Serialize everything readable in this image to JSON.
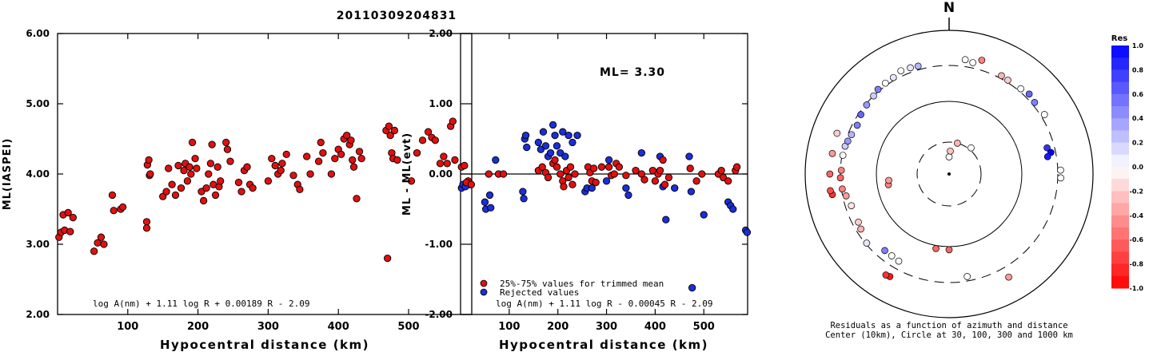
{
  "title": "20110309204831",
  "colors": {
    "trimmed": "#e01010",
    "rejected": "#1a2fd8"
  },
  "panel1": {
    "ylabel": "ML(IASPEI)",
    "xlabel": "Hypocentral distance (km)",
    "xlim": [
      0,
      590
    ],
    "ylim": [
      2.0,
      6.0
    ],
    "xticks": [
      "100",
      "200",
      "300",
      "400",
      "500"
    ],
    "yticks": [
      "2.00",
      "3.00",
      "4.00",
      "5.00",
      "6.00"
    ],
    "formula": "log A(nm) + 1.11 log R + 0.00189 R - 2.09"
  },
  "panel2": {
    "ylabel": "ML - ML(evt)",
    "xlabel": "Hypocentral distance (km)",
    "xlim": [
      0,
      590
    ],
    "ylim": [
      -2.0,
      2.0
    ],
    "xticks": [
      "100",
      "200",
      "300",
      "400",
      "500"
    ],
    "yticks": [
      "-2.00",
      "-1.00",
      "0.00",
      "1.00",
      "2.00"
    ],
    "ml_text": "ML= 3.30",
    "legend_trimmed": "25%-75% values for trimmed mean",
    "legend_rejected": "Rejected values",
    "formula": "log A(nm) + 1.11 log R - 0.00045 R - 2.09"
  },
  "panel3": {
    "north": "N",
    "caption1": "Residuals as a function of azimuth and distance",
    "caption2": "Center (10km), Circle at 30, 100, 300 and 1000 km"
  },
  "colorbar": {
    "title": "Res",
    "ticks": [
      "1.0",
      "0.8",
      "0.6",
      "0.4",
      "0.2",
      "0.0",
      "-0.2",
      "-0.4",
      "-0.6",
      "-0.8",
      "-1.0"
    ]
  },
  "chart_data": [
    {
      "type": "scatter",
      "title": "20110309204831",
      "xlabel": "Hypocentral distance (km)",
      "ylabel": "ML(IASPEI)",
      "xlim": [
        0,
        590
      ],
      "ylim": [
        2.0,
        6.0
      ],
      "points": [
        [
          2,
          3.1
        ],
        [
          5,
          3.17
        ],
        [
          8,
          3.42
        ],
        [
          10,
          3.2
        ],
        [
          15,
          3.45
        ],
        [
          18,
          3.18
        ],
        [
          22,
          3.38
        ],
        [
          52,
          2.9
        ],
        [
          57,
          3.02
        ],
        [
          62,
          3.1
        ],
        [
          66,
          3.0
        ],
        [
          78,
          3.7
        ],
        [
          80,
          3.48
        ],
        [
          90,
          3.5
        ],
        [
          93,
          3.53
        ],
        [
          127,
          3.32
        ],
        [
          127,
          3.23
        ],
        [
          128,
          4.13
        ],
        [
          130,
          4.2
        ],
        [
          131,
          3.98
        ],
        [
          132,
          4.0
        ],
        [
          150,
          3.68
        ],
        [
          155,
          3.75
        ],
        [
          158,
          4.08
        ],
        [
          163,
          3.85
        ],
        [
          168,
          3.7
        ],
        [
          172,
          4.12
        ],
        [
          176,
          3.8
        ],
        [
          180,
          4.05
        ],
        [
          182,
          4.15
        ],
        [
          185,
          3.9
        ],
        [
          188,
          4.1
        ],
        [
          190,
          4.0
        ],
        [
          192,
          4.45
        ],
        [
          196,
          4.22
        ],
        [
          198,
          4.08
        ],
        [
          205,
          3.75
        ],
        [
          208,
          3.62
        ],
        [
          212,
          3.8
        ],
        [
          215,
          4.0
        ],
        [
          218,
          4.15
        ],
        [
          220,
          4.42
        ],
        [
          222,
          3.85
        ],
        [
          225,
          3.7
        ],
        [
          228,
          4.1
        ],
        [
          230,
          3.82
        ],
        [
          232,
          3.9
        ],
        [
          240,
          4.45
        ],
        [
          242,
          4.35
        ],
        [
          246,
          4.18
        ],
        [
          258,
          3.88
        ],
        [
          262,
          3.75
        ],
        [
          266,
          4.05
        ],
        [
          270,
          4.1
        ],
        [
          274,
          3.85
        ],
        [
          278,
          3.8
        ],
        [
          300,
          3.9
        ],
        [
          305,
          4.22
        ],
        [
          310,
          4.12
        ],
        [
          314,
          4.0
        ],
        [
          318,
          4.05
        ],
        [
          320,
          4.15
        ],
        [
          326,
          4.28
        ],
        [
          336,
          3.98
        ],
        [
          342,
          3.85
        ],
        [
          345,
          3.78
        ],
        [
          355,
          4.25
        ],
        [
          360,
          4.0
        ],
        [
          372,
          4.18
        ],
        [
          375,
          4.45
        ],
        [
          378,
          4.3
        ],
        [
          390,
          4.0
        ],
        [
          395,
          4.22
        ],
        [
          400,
          4.35
        ],
        [
          404,
          4.28
        ],
        [
          408,
          4.5
        ],
        [
          412,
          4.55
        ],
        [
          416,
          4.42
        ],
        [
          418,
          4.48
        ],
        [
          420,
          4.2
        ],
        [
          422,
          4.1
        ],
        [
          426,
          3.65
        ],
        [
          430,
          4.32
        ],
        [
          433,
          4.22
        ],
        [
          468,
          4.62
        ],
        [
          470,
          2.8
        ],
        [
          472,
          4.68
        ],
        [
          474,
          4.55
        ],
        [
          476,
          4.3
        ],
        [
          478,
          4.22
        ],
        [
          480,
          4.62
        ],
        [
          484,
          4.2
        ],
        [
          504,
          3.9
        ],
        [
          512,
          4.3
        ],
        [
          520,
          4.48
        ],
        [
          528,
          4.6
        ],
        [
          533,
          4.52
        ],
        [
          538,
          4.48
        ],
        [
          545,
          4.15
        ],
        [
          550,
          4.25
        ],
        [
          555,
          4.15
        ],
        [
          560,
          4.68
        ],
        [
          563,
          4.75
        ],
        [
          566,
          4.2
        ],
        [
          585,
          3.9
        ],
        [
          588,
          3.85
        ]
      ]
    },
    {
      "type": "scatter",
      "xlabel": "Hypocentral distance (km)",
      "ylabel": "ML - ML(evt)",
      "xlim": [
        0,
        590
      ],
      "ylim": [
        -2.0,
        2.0
      ],
      "series": [
        {
          "name": "25%-75% values for trimmed mean",
          "points": [
            [
              2,
              0.1
            ],
            [
              8,
              0.12
            ],
            [
              12,
              -0.12
            ],
            [
              22,
              -0.15
            ],
            [
              58,
              0.0
            ],
            [
              78,
              0.0
            ],
            [
              88,
              0.0
            ],
            [
              160,
              0.05
            ],
            [
              168,
              0.1
            ],
            [
              175,
              0.02
            ],
            [
              180,
              -0.05
            ],
            [
              190,
              0.15
            ],
            [
              194,
              0.2
            ],
            [
              198,
              0.1
            ],
            [
              205,
              0.0
            ],
            [
              210,
              -0.1
            ],
            [
              212,
              -0.18
            ],
            [
              218,
              0.05
            ],
            [
              222,
              -0.05
            ],
            [
              226,
              0.1
            ],
            [
              230,
              -0.15
            ],
            [
              235,
              0.0
            ],
            [
              262,
              0.1
            ],
            [
              266,
              0.02
            ],
            [
              270,
              -0.1
            ],
            [
              274,
              0.08
            ],
            [
              278,
              -0.12
            ],
            [
              290,
              0.1
            ],
            [
              305,
              0.1
            ],
            [
              310,
              -0.02
            ],
            [
              316,
              0.0
            ],
            [
              320,
              0.15
            ],
            [
              326,
              0.1
            ],
            [
              340,
              -0.02
            ],
            [
              360,
              0.05
            ],
            [
              372,
              0.0
            ],
            [
              378,
              -0.08
            ],
            [
              395,
              0.05
            ],
            [
              400,
              -0.1
            ],
            [
              406,
              0.0
            ],
            [
              410,
              0.05
            ],
            [
              416,
              0.2
            ],
            [
              420,
              -0.15
            ],
            [
              428,
              -0.05
            ],
            [
              472,
              0.08
            ],
            [
              485,
              -0.1
            ],
            [
              496,
              0.0
            ],
            [
              530,
              0.0
            ],
            [
              536,
              0.05
            ],
            [
              540,
              -0.05
            ],
            [
              550,
              -0.1
            ],
            [
              565,
              0.05
            ],
            [
              568,
              0.1
            ]
          ]
        },
        {
          "name": "Rejected values",
          "points": [
            [
              2,
              -0.2
            ],
            [
              5,
              -0.15
            ],
            [
              10,
              -0.18
            ],
            [
              50,
              -0.4
            ],
            [
              52,
              -0.5
            ],
            [
              60,
              -0.3
            ],
            [
              62,
              -0.48
            ],
            [
              72,
              0.2
            ],
            [
              128,
              -0.25
            ],
            [
              130,
              -0.35
            ],
            [
              132,
              0.5
            ],
            [
              134,
              0.55
            ],
            [
              136,
              0.38
            ],
            [
              160,
              0.45
            ],
            [
              165,
              0.35
            ],
            [
              170,
              0.6
            ],
            [
              175,
              0.4
            ],
            [
              180,
              0.25
            ],
            [
              185,
              0.3
            ],
            [
              190,
              0.7
            ],
            [
              194,
              0.55
            ],
            [
              198,
              0.4
            ],
            [
              205,
              0.3
            ],
            [
              210,
              0.6
            ],
            [
              215,
              0.25
            ],
            [
              222,
              0.55
            ],
            [
              230,
              0.45
            ],
            [
              240,
              0.55
            ],
            [
              256,
              -0.25
            ],
            [
              260,
              -0.2
            ],
            [
              270,
              -0.2
            ],
            [
              300,
              -0.1
            ],
            [
              305,
              0.2
            ],
            [
              340,
              -0.2
            ],
            [
              345,
              -0.3
            ],
            [
              372,
              0.3
            ],
            [
              410,
              0.25
            ],
            [
              416,
              -0.18
            ],
            [
              422,
              -0.65
            ],
            [
              440,
              -0.2
            ],
            [
              470,
              0.25
            ],
            [
              474,
              -0.25
            ],
            [
              476,
              -1.62
            ],
            [
              500,
              -0.58
            ],
            [
              550,
              -0.4
            ],
            [
              555,
              -0.45
            ],
            [
              560,
              -0.5
            ],
            [
              586,
              -0.8
            ],
            [
              589,
              -0.83
            ]
          ]
        }
      ],
      "annotation": "ML= 3.30"
    },
    {
      "type": "scatter",
      "title": "Residuals as a function of azimuth and distance",
      "rings_km": [
        30,
        100,
        300,
        1000
      ],
      "center_km": 10,
      "points_az_dist_res": [
        [
          0,
          18,
          0.0
        ],
        [
          3,
          22,
          -0.25
        ],
        [
          15,
          30,
          -0.3
        ],
        [
          40,
          32,
          0.0
        ],
        [
          180,
          110,
          -0.6
        ],
        [
          190,
          110,
          -0.6
        ],
        [
          260,
          72,
          -0.5
        ],
        [
          264,
          70,
          -0.4
        ],
        [
          210,
          235,
          0.0
        ],
        [
          215,
          230,
          0.0
        ],
        [
          220,
          230,
          0.5
        ],
        [
          170,
          262,
          0.0
        ],
        [
          230,
          290,
          0.1
        ],
        [
          238,
          260,
          -0.3
        ],
        [
          242,
          250,
          -0.2
        ],
        [
          252,
          250,
          -0.1
        ],
        [
          258,
          270,
          -0.4
        ],
        [
          262,
          292,
          -0.5
        ],
        [
          268,
          300,
          -0.6
        ],
        [
          272,
          292,
          -0.5
        ],
        [
          280,
          292,
          0.0
        ],
        [
          285,
          290,
          0.2
        ],
        [
          288,
          280,
          0.4
        ],
        [
          292,
          270,
          0.3
        ],
        [
          298,
          260,
          0.5
        ],
        [
          304,
          280,
          0.6
        ],
        [
          310,
          290,
          0.4
        ],
        [
          316,
          300,
          0.2
        ],
        [
          320,
          320,
          0.5
        ],
        [
          325,
          325,
          0.0
        ],
        [
          330,
          330,
          0.1
        ],
        [
          335,
          360,
          0.0
        ],
        [
          340,
          350,
          0.1
        ],
        [
          344,
          340,
          0.3
        ],
        [
          8,
          380,
          0.0
        ],
        [
          12,
          360,
          0.0
        ],
        [
          28,
          330,
          -0.3
        ],
        [
          32,
          322,
          -0.2
        ],
        [
          40,
          330,
          0.0
        ],
        [
          75,
          240,
          0.8
        ],
        [
          78,
          260,
          1.0
        ],
        [
          80,
          230,
          0.9
        ],
        [
          88,
          330,
          0.0
        ],
        [
          92,
          332,
          0.0
        ],
        [
          150,
          430,
          -0.4
        ],
        [
          210,
          420,
          -0.9
        ],
        [
          212,
          430,
          -0.8
        ],
        [
          260,
          420,
          -0.8
        ],
        [
          262,
          440,
          -0.7
        ],
        [
          270,
          430,
          -0.6
        ],
        [
          280,
          420,
          -0.4
        ],
        [
          290,
          430,
          -0.2
        ],
        [
          45,
          350,
          0.6
        ],
        [
          50,
          330,
          0.5
        ],
        [
          58,
          340,
          0.0
        ],
        [
          16,
          420,
          -0.5
        ]
      ]
    }
  ]
}
